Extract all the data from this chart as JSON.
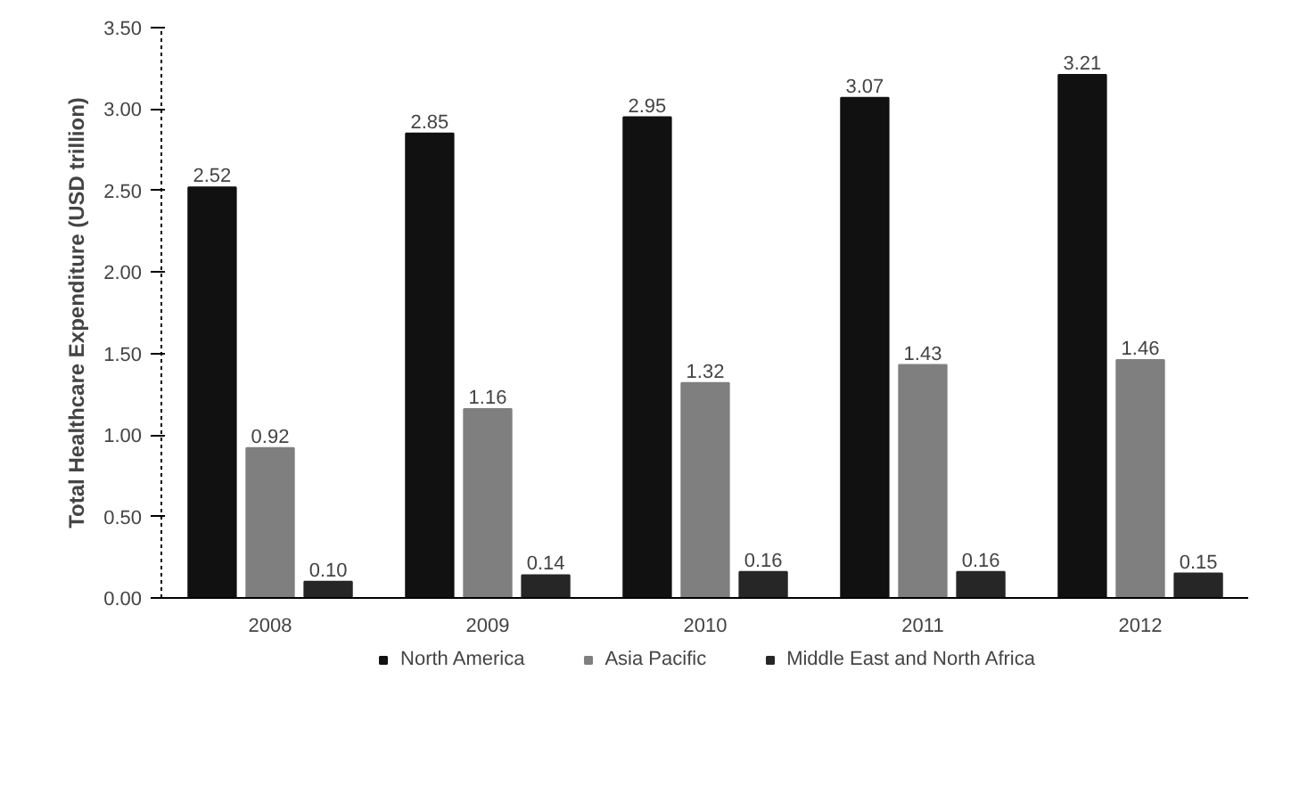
{
  "chart_data": {
    "type": "bar",
    "ylabel": "Total Healthcare Expenditure (USD trillion)",
    "categories": [
      "2008",
      "2009",
      "2010",
      "2011",
      "2012"
    ],
    "series": [
      {
        "name": "North America",
        "color": "#111111",
        "values": [
          2.52,
          2.85,
          2.95,
          3.07,
          3.21
        ],
        "value_labels": [
          "2.52",
          "2.85",
          "2.95",
          "3.07",
          "3.21"
        ]
      },
      {
        "name": "Asia Pacific",
        "color": "#7f7f7f",
        "values": [
          0.92,
          1.16,
          1.32,
          1.43,
          1.46
        ],
        "value_labels": [
          "0.92",
          "1.16",
          "1.32",
          "1.43",
          "1.46"
        ]
      },
      {
        "name": "Middle East and North Africa",
        "color": "#262626",
        "values": [
          0.1,
          0.14,
          0.16,
          0.16,
          0.15
        ],
        "value_labels": [
          "0.10",
          "0.14",
          "0.16",
          "0.16",
          "0.15"
        ]
      }
    ],
    "ylim": [
      0,
      3.5
    ],
    "yticks": [
      {
        "value": 0,
        "label": "0.00"
      },
      {
        "value": 0.5,
        "label": "0.50"
      },
      {
        "value": 1,
        "label": "1.00"
      },
      {
        "value": 1.5,
        "label": "1.50"
      },
      {
        "value": 2,
        "label": "2.00"
      },
      {
        "value": 2.5,
        "label": "2.50"
      },
      {
        "value": 3,
        "label": "3.00"
      },
      {
        "value": 3.5,
        "label": "3.50"
      }
    ],
    "legend": "bottom",
    "grid": false
  }
}
